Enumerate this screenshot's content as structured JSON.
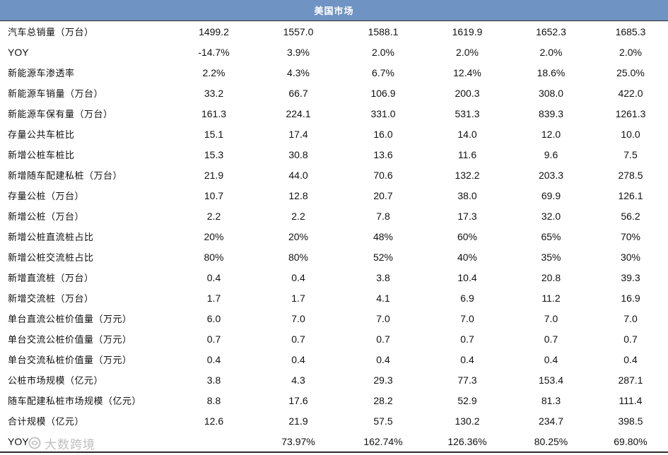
{
  "header": {
    "title": "美国市场"
  },
  "rows": [
    {
      "label": "汽车总销量（万台）",
      "values": [
        "1499.2",
        "1557.0",
        "1588.1",
        "1619.9",
        "1652.3",
        "1685.3"
      ]
    },
    {
      "label": "YOY",
      "values": [
        "-14.7%",
        "3.9%",
        "2.0%",
        "2.0%",
        "2.0%",
        "2.0%"
      ]
    },
    {
      "label": "新能源车渗透率",
      "values": [
        "2.2%",
        "4.3%",
        "6.7%",
        "12.4%",
        "18.6%",
        "25.0%"
      ]
    },
    {
      "label": "新能源车销量（万台）",
      "values": [
        "33.2",
        "66.7",
        "106.9",
        "200.3",
        "308.0",
        "422.0"
      ]
    },
    {
      "label": "新能源车保有量（万台）",
      "values": [
        "161.3",
        "224.1",
        "331.0",
        "531.3",
        "839.3",
        "1261.3"
      ]
    },
    {
      "label": "存量公共车桩比",
      "values": [
        "15.1",
        "17.4",
        "16.0",
        "14.0",
        "12.0",
        "10.0"
      ]
    },
    {
      "label": "新增公桩车桩比",
      "values": [
        "15.3",
        "30.8",
        "13.6",
        "11.6",
        "9.6",
        "7.5"
      ]
    },
    {
      "label": "新增随车配建私桩（万台）",
      "values": [
        "21.9",
        "44.0",
        "70.6",
        "132.2",
        "203.3",
        "278.5"
      ]
    },
    {
      "label": "存量公桩（万台）",
      "values": [
        "10.7",
        "12.8",
        "20.7",
        "38.0",
        "69.9",
        "126.1"
      ]
    },
    {
      "label": "新增公桩（万台）",
      "values": [
        "2.2",
        "2.2",
        "7.8",
        "17.3",
        "32.0",
        "56.2"
      ]
    },
    {
      "label": "新增公桩直流桩占比",
      "values": [
        "20%",
        "20%",
        "48%",
        "60%",
        "65%",
        "70%"
      ]
    },
    {
      "label": "新增公桩交流桩占比",
      "values": [
        "80%",
        "80%",
        "52%",
        "40%",
        "35%",
        "30%"
      ]
    },
    {
      "label": "新增直流桩（万台）",
      "values": [
        "0.4",
        "0.4",
        "3.8",
        "10.4",
        "20.8",
        "39.3"
      ]
    },
    {
      "label": "新增交流桩（万台）",
      "values": [
        "1.7",
        "1.7",
        "4.1",
        "6.9",
        "11.2",
        "16.9"
      ]
    },
    {
      "label": "单台直流公桩价值量（万元）",
      "values": [
        "6.0",
        "7.0",
        "7.0",
        "7.0",
        "7.0",
        "7.0"
      ]
    },
    {
      "label": "单台交流公桩价值量（万元）",
      "values": [
        "0.7",
        "0.7",
        "0.7",
        "0.7",
        "0.7",
        "0.7"
      ]
    },
    {
      "label": "单台交流私桩价值量（万元）",
      "values": [
        "0.4",
        "0.4",
        "0.4",
        "0.4",
        "0.4",
        "0.4"
      ]
    },
    {
      "label": "公桩市场规模（亿元）",
      "values": [
        "3.8",
        "4.3",
        "29.3",
        "77.3",
        "153.4",
        "287.1"
      ]
    },
    {
      "label": "随车配建私桩市场规模（亿元）",
      "values": [
        "8.8",
        "17.6",
        "28.2",
        "52.9",
        "81.3",
        "111.4"
      ]
    },
    {
      "label": "合计规模（亿元）",
      "values": [
        "12.6",
        "21.9",
        "57.5",
        "130.2",
        "234.7",
        "398.5"
      ]
    },
    {
      "label": "YOY",
      "values": [
        "",
        "73.97%",
        "162.74%",
        "126.36%",
        "80.25%",
        "69.80%"
      ]
    }
  ],
  "watermark": {
    "text": "大数跨境"
  }
}
